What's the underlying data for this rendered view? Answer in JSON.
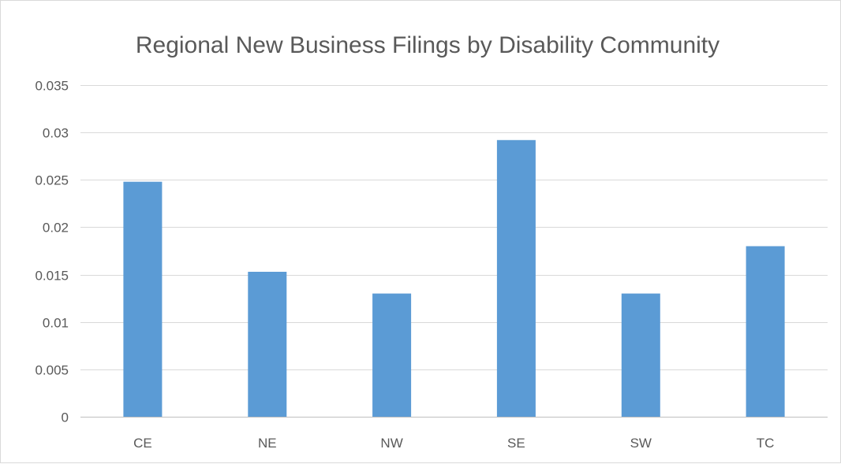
{
  "chart_data": {
    "type": "bar",
    "title": "Regional New Business Filings by Disability Community",
    "categories": [
      "CE",
      "NE",
      "NW",
      "SE",
      "SW",
      "TC"
    ],
    "values": [
      0.0248,
      0.0153,
      0.013,
      0.0292,
      0.013,
      0.018
    ],
    "ylim": [
      0,
      0.035
    ],
    "yticks": [
      "0",
      "0.005",
      "0.01",
      "0.015",
      "0.02",
      "0.025",
      "0.03",
      "0.035"
    ],
    "xlabel": "",
    "ylabel": "",
    "grid": true,
    "legend": "none",
    "bar_color": "#5b9bd5",
    "grid_color": "#d9d9d9",
    "axis_color": "#bfbfbf",
    "text_color": "#595959"
  }
}
